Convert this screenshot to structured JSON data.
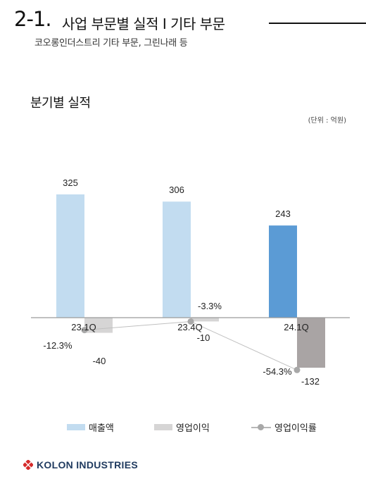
{
  "header": {
    "section_number": "2-1.",
    "title": "사업 부문별 실적 I 기타 부문",
    "subtitle": "코오롱인더스트리 기타 부문, 그린나래 등"
  },
  "chart_data": {
    "type": "bar",
    "title": "분기별 실적",
    "unit_note": "(단위 : 억원)",
    "categories": [
      "23.1Q",
      "23.4Q",
      "24.1Q"
    ],
    "series": [
      {
        "name": "매출액",
        "type": "bar",
        "values": [
          325,
          306,
          243
        ],
        "colors": [
          "#c2dcf0",
          "#c2dcf0",
          "#5b9bd5"
        ],
        "labels": [
          "325",
          "306",
          "243"
        ]
      },
      {
        "name": "영업이익",
        "type": "bar",
        "values": [
          -40,
          -10,
          -132
        ],
        "colors": [
          "#d6d5d5",
          "#d6d5d5",
          "#a9a4a4"
        ],
        "labels": [
          "-40",
          "-10",
          "-132"
        ]
      },
      {
        "name": "영업이익률",
        "type": "line",
        "values": [
          -12.3,
          -3.3,
          -54.3
        ],
        "unit": "%",
        "labels": [
          "-12.3%",
          "-3.3%",
          "-54.3%"
        ]
      }
    ],
    "grid": false
  },
  "legend": {
    "items": [
      {
        "label": "매출액",
        "color": "#c2dcf0"
      },
      {
        "label": "영업이익",
        "color": "#d6d5d5"
      },
      {
        "label": "영업이익률",
        "color": "#a8a8a8"
      }
    ]
  },
  "footer": {
    "brand": "KOLON INDUSTRIES",
    "logo_color": "#d62b2b",
    "brand_color": "#1f3a5f"
  }
}
